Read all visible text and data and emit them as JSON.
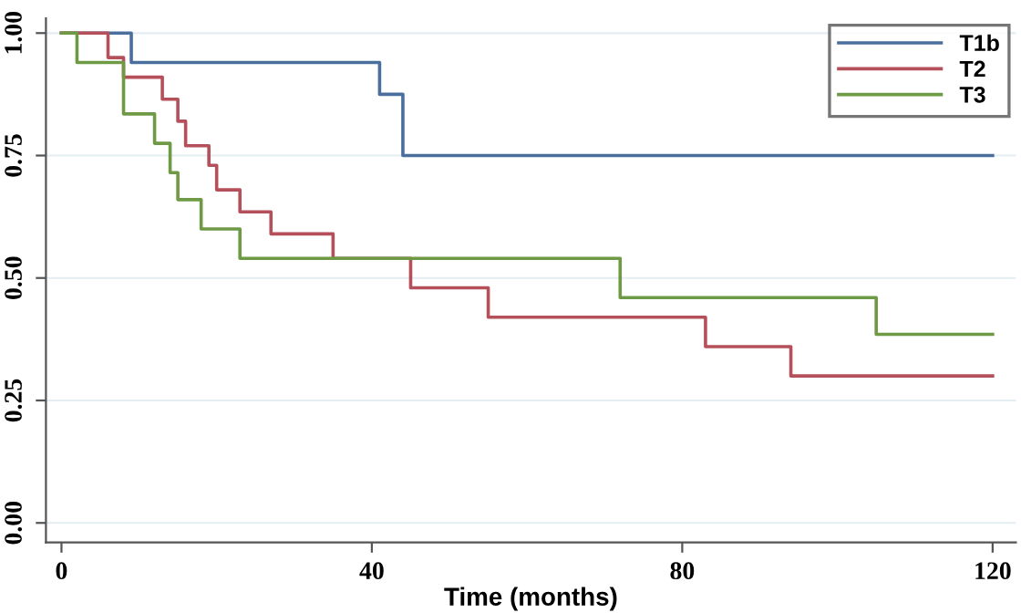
{
  "chart_data": {
    "type": "step",
    "xlabel": "Time (months)",
    "xlim": [
      -2,
      123
    ],
    "ylim": [
      -0.04,
      1.03
    ],
    "xticks": [
      0,
      40,
      80,
      120
    ],
    "yticks": [
      {
        "value": 0,
        "label": "0.00"
      },
      {
        "value": 0.25,
        "label": "0.25"
      },
      {
        "value": 0.5,
        "label": "0.50"
      },
      {
        "value": 0.75,
        "label": "0.75"
      },
      {
        "value": 1,
        "label": "1.00"
      }
    ],
    "grid": "y",
    "legend": "top right",
    "series": [
      {
        "name": "T1b",
        "color": "#4a6f9c",
        "x": [
          0,
          9,
          41,
          44,
          120
        ],
        "values": [
          1.0,
          0.94,
          0.875,
          0.75,
          0.75
        ]
      },
      {
        "name": "T2",
        "color": "#b5505a",
        "x": [
          0,
          6,
          8,
          13,
          15,
          16,
          19,
          20,
          23,
          27,
          35,
          45,
          55,
          83,
          94,
          120
        ],
        "values": [
          1.0,
          0.95,
          0.91,
          0.865,
          0.82,
          0.77,
          0.73,
          0.68,
          0.635,
          0.59,
          0.54,
          0.48,
          0.42,
          0.36,
          0.3,
          0.3
        ]
      },
      {
        "name": "T3",
        "color": "#6f9a45",
        "x": [
          0,
          2,
          8,
          12,
          14,
          15,
          18,
          23,
          72,
          105,
          120
        ],
        "values": [
          1.0,
          0.94,
          0.835,
          0.775,
          0.715,
          0.66,
          0.6,
          0.54,
          0.46,
          0.385,
          0.385
        ]
      }
    ]
  }
}
